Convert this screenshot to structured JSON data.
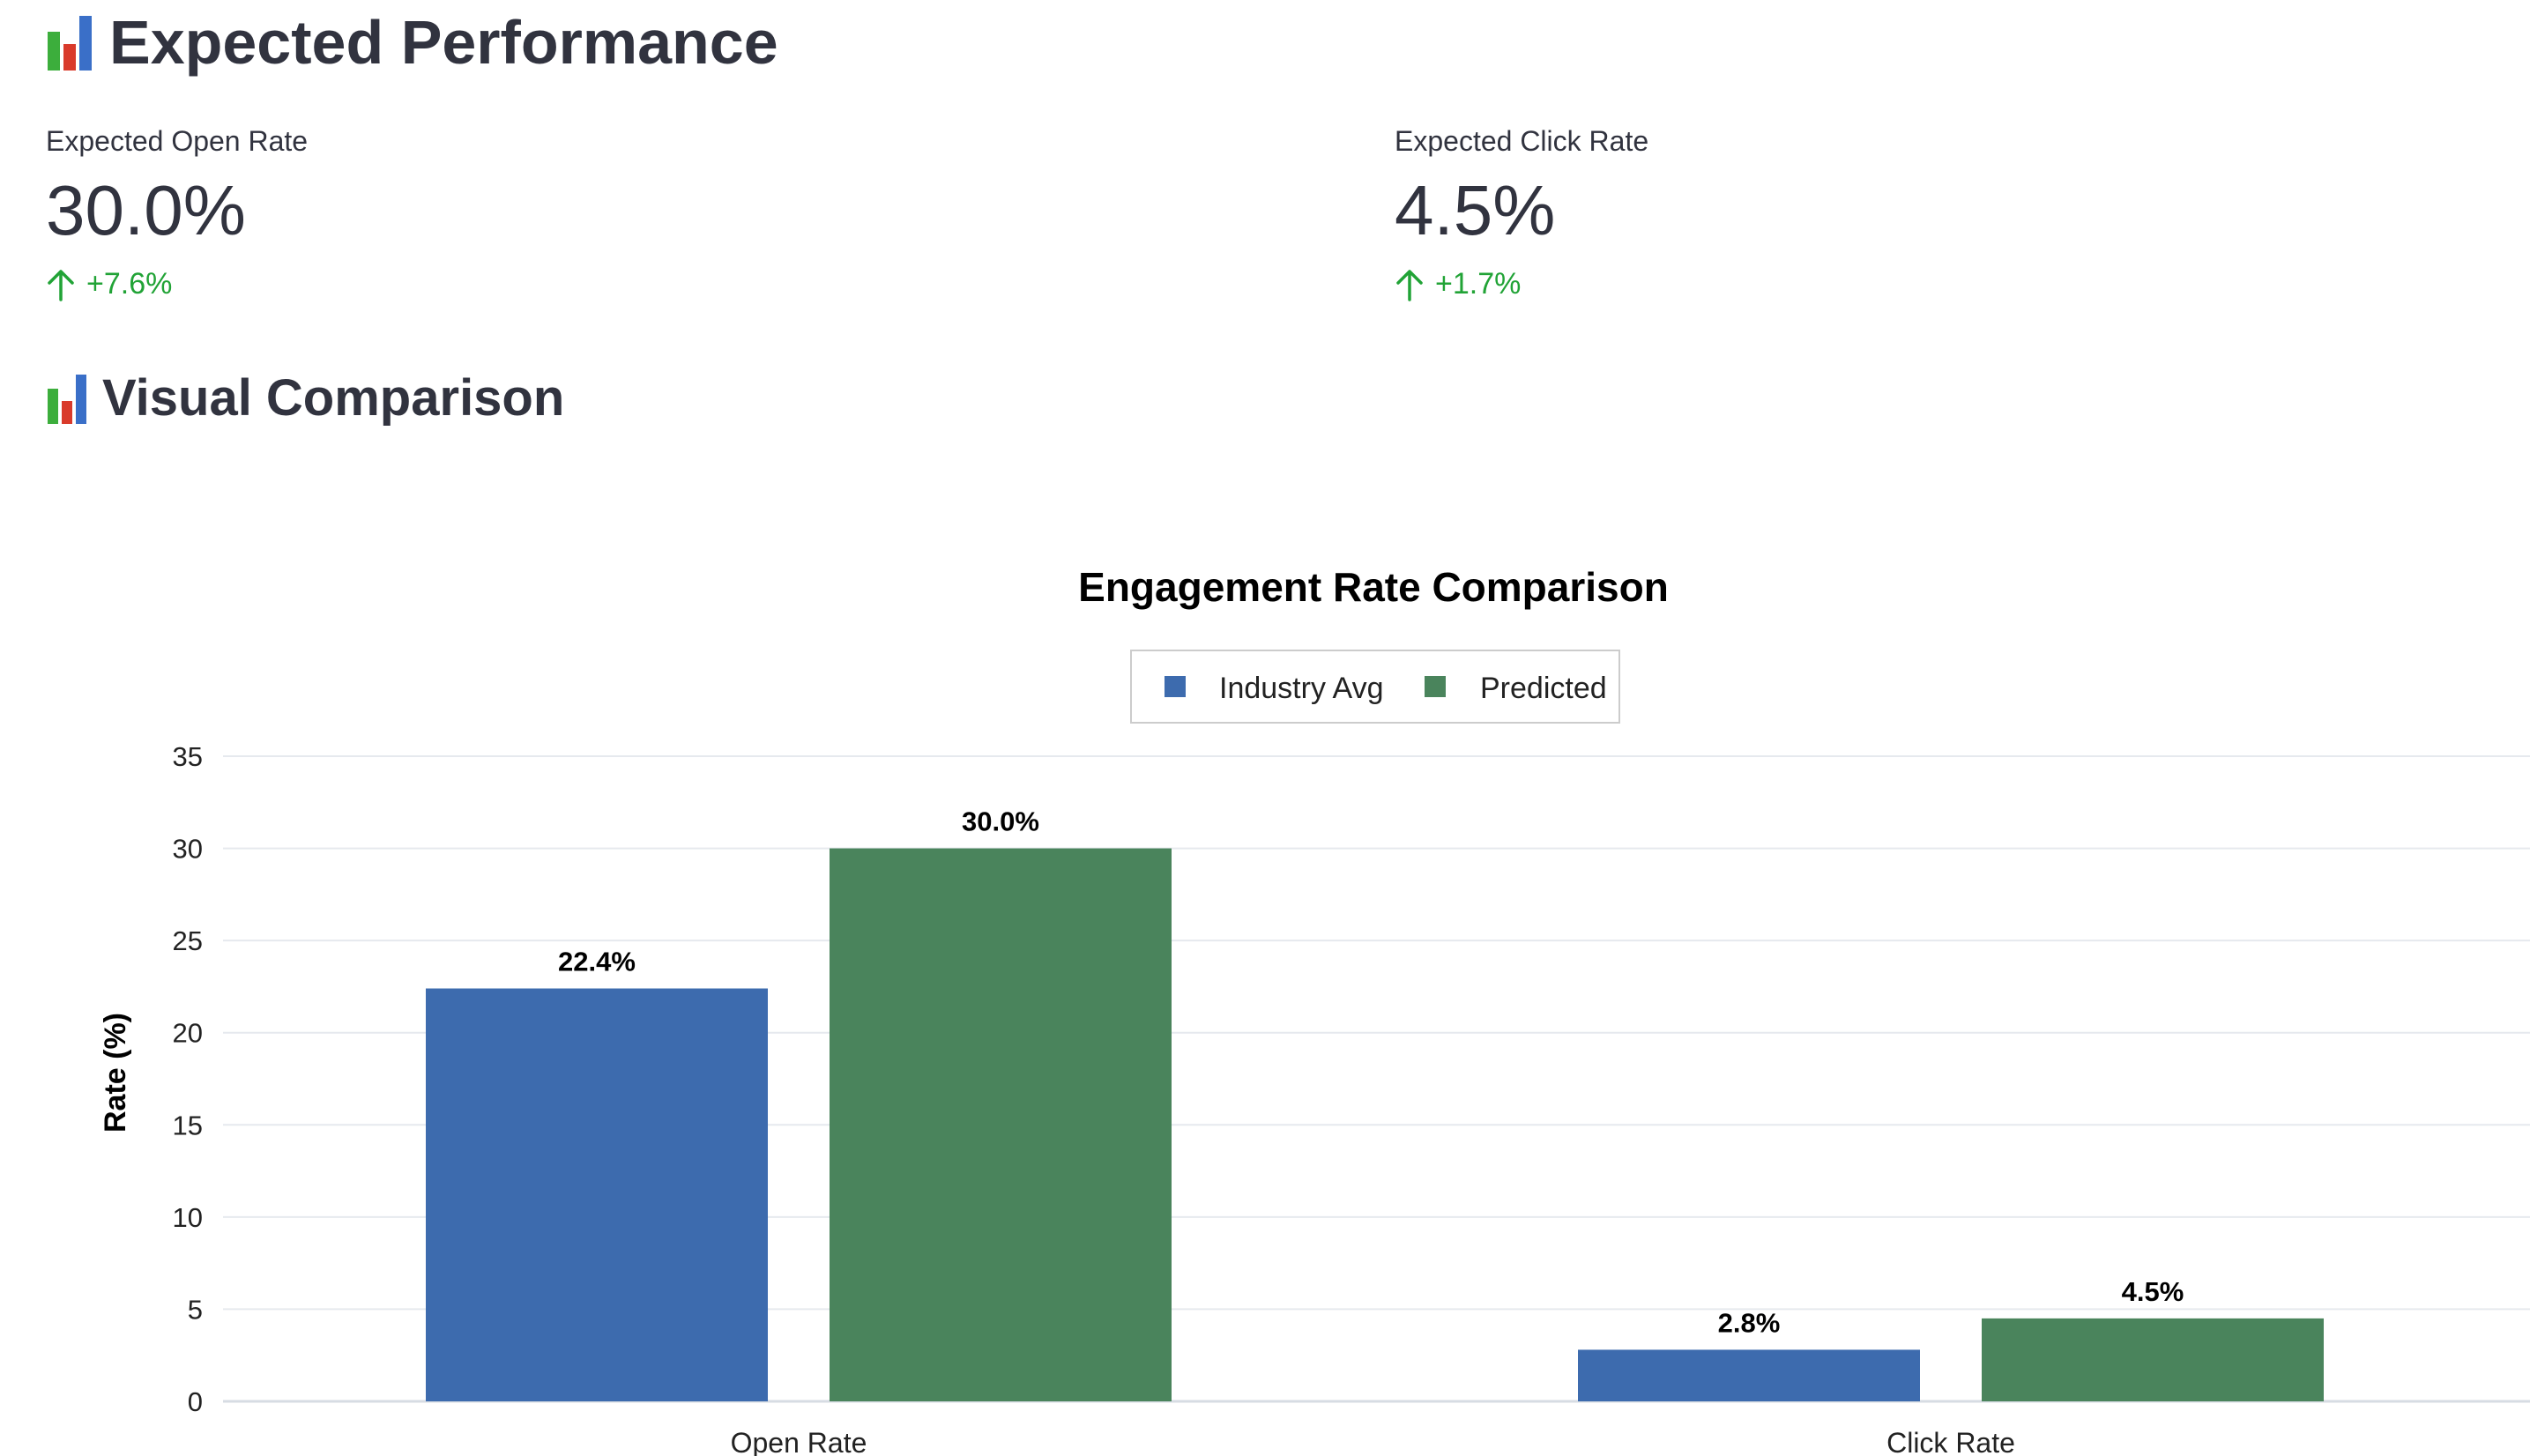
{
  "header": {
    "icon": "bar-chart-icon",
    "title": "Expected Performance"
  },
  "metrics": [
    {
      "label": "Expected Open Rate",
      "value": "30.0%",
      "delta": "+7.6%",
      "delta_icon": "arrow-up-icon"
    },
    {
      "label": "Expected Click Rate",
      "value": "4.5%",
      "delta": "+1.7%",
      "delta_icon": "arrow-up-icon"
    }
  ],
  "section": {
    "icon": "bar-chart-icon",
    "title": "Visual Comparison"
  },
  "colors": {
    "industry": "#3d6bae",
    "predicted": "#4a845c",
    "delta_green": "#21a336",
    "text": "#31333f"
  },
  "chart_data": {
    "type": "bar",
    "title": "Engagement Rate Comparison",
    "xlabel": "",
    "ylabel": "Rate (%)",
    "ylim": [
      0,
      35
    ],
    "yticks": [
      0,
      5,
      10,
      15,
      20,
      25,
      30,
      35
    ],
    "categories": [
      "Open Rate",
      "Click Rate"
    ],
    "series": [
      {
        "name": "Industry Avg",
        "values": [
          22.4,
          2.8
        ],
        "labels": [
          "22.4%",
          "2.8%"
        ]
      },
      {
        "name": "Predicted",
        "values": [
          30.0,
          4.5
        ],
        "labels": [
          "30.0%",
          "4.5%"
        ]
      }
    ],
    "legend": "top-center",
    "grid": true
  }
}
